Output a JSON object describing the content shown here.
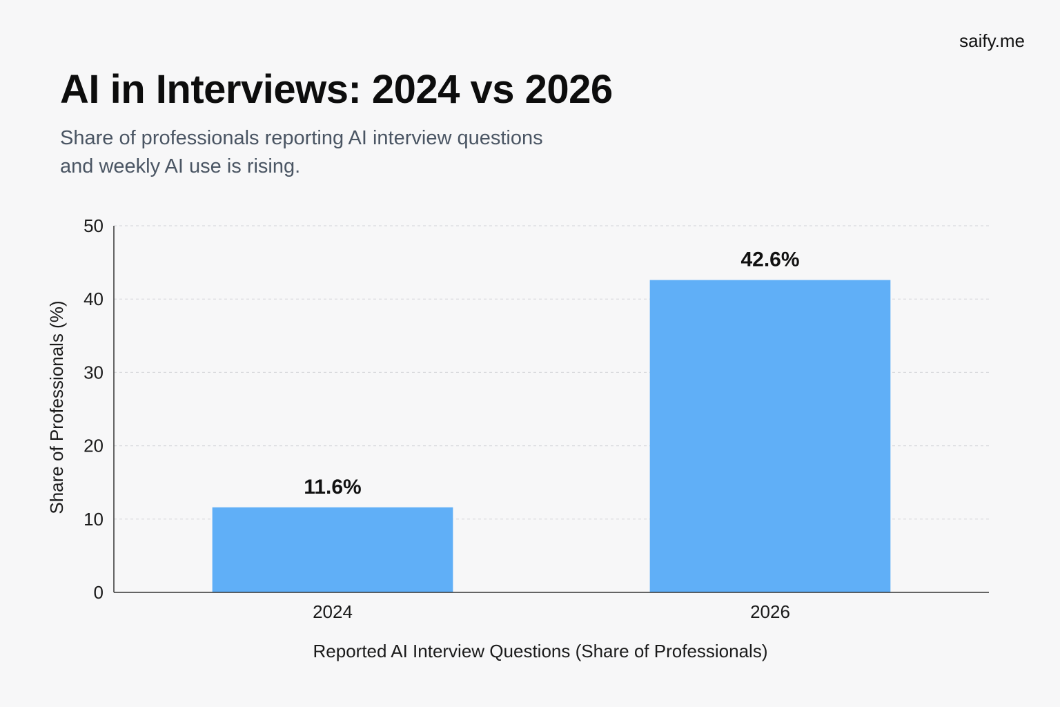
{
  "brand": "saify.me",
  "colors": {
    "bar": "#60aff7",
    "grid": "#d9dadd",
    "axis": "#333333",
    "subtitle": "#4a5563"
  },
  "chart_data": {
    "type": "bar",
    "title": "AI in Interviews: 2024 vs 2026",
    "subtitle_lines": [
      "Share of professionals reporting AI interview questions",
      "and weekly AI use is rising."
    ],
    "categories": [
      "2024",
      "2026"
    ],
    "values": [
      11.6,
      42.6
    ],
    "data_labels": [
      "11.6%",
      "42.6%"
    ],
    "xlabel": "Reported AI Interview Questions (Share of Professionals)",
    "ylabel": "Share of Professionals (%)",
    "ylim": [
      0,
      50
    ],
    "yticks": [
      0,
      10,
      20,
      30,
      40,
      50
    ],
    "grid": true,
    "legend": "none"
  }
}
